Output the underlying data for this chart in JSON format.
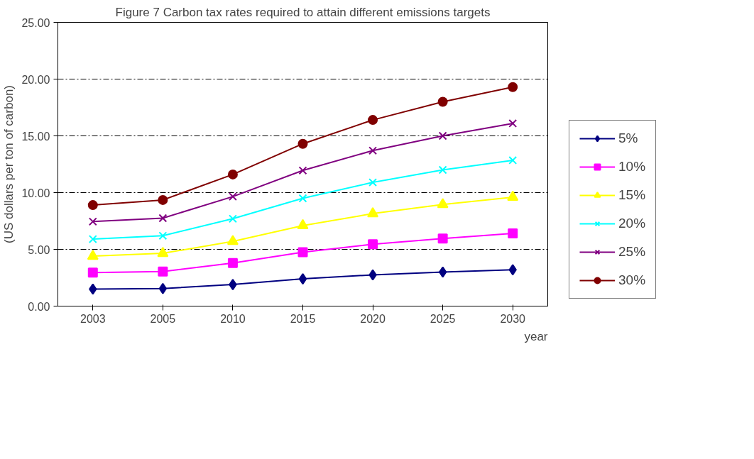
{
  "chart_data": {
    "type": "line",
    "title": "Figure 7 Carbon tax rates required to attain different emissions targets",
    "xlabel": "year",
    "ylabel": "(US dollars per ton of carbon)",
    "categories": [
      "2003",
      "2005",
      "2010",
      "2015",
      "2020",
      "2025",
      "2030"
    ],
    "ylim": [
      0,
      25
    ],
    "yticks": [
      {
        "value": 0,
        "label": "0.00"
      },
      {
        "value": 5,
        "label": "5.00"
      },
      {
        "value": 10,
        "label": "10.00"
      },
      {
        "value": 15,
        "label": "15.00"
      },
      {
        "value": 20,
        "label": "20.00"
      },
      {
        "value": 25,
        "label": "25.00"
      }
    ],
    "grid": "y",
    "legend": "right",
    "series": [
      {
        "name": "5%",
        "color": "#000080",
        "marker": "diamond",
        "values": [
          1.5,
          1.55,
          1.9,
          2.4,
          2.75,
          3.0,
          3.2
        ]
      },
      {
        "name": "10%",
        "color": "#ff00ff",
        "marker": "square",
        "values": [
          2.95,
          3.05,
          3.8,
          4.75,
          5.45,
          5.95,
          6.4
        ]
      },
      {
        "name": "15%",
        "color": "#ffff00",
        "marker": "triangle",
        "values": [
          4.4,
          4.65,
          5.7,
          7.1,
          8.15,
          8.95,
          9.6
        ]
      },
      {
        "name": "20%",
        "color": "#00ffff",
        "marker": "cross",
        "values": [
          5.9,
          6.2,
          7.7,
          9.5,
          10.9,
          12.0,
          12.85
        ]
      },
      {
        "name": "25%",
        "color": "#800080",
        "marker": "cross",
        "values": [
          7.45,
          7.75,
          9.65,
          11.95,
          13.7,
          15.0,
          16.1
        ]
      },
      {
        "name": "30%",
        "color": "#800000",
        "marker": "circle",
        "values": [
          8.9,
          9.35,
          11.6,
          14.3,
          16.4,
          18.0,
          19.3
        ]
      }
    ]
  }
}
